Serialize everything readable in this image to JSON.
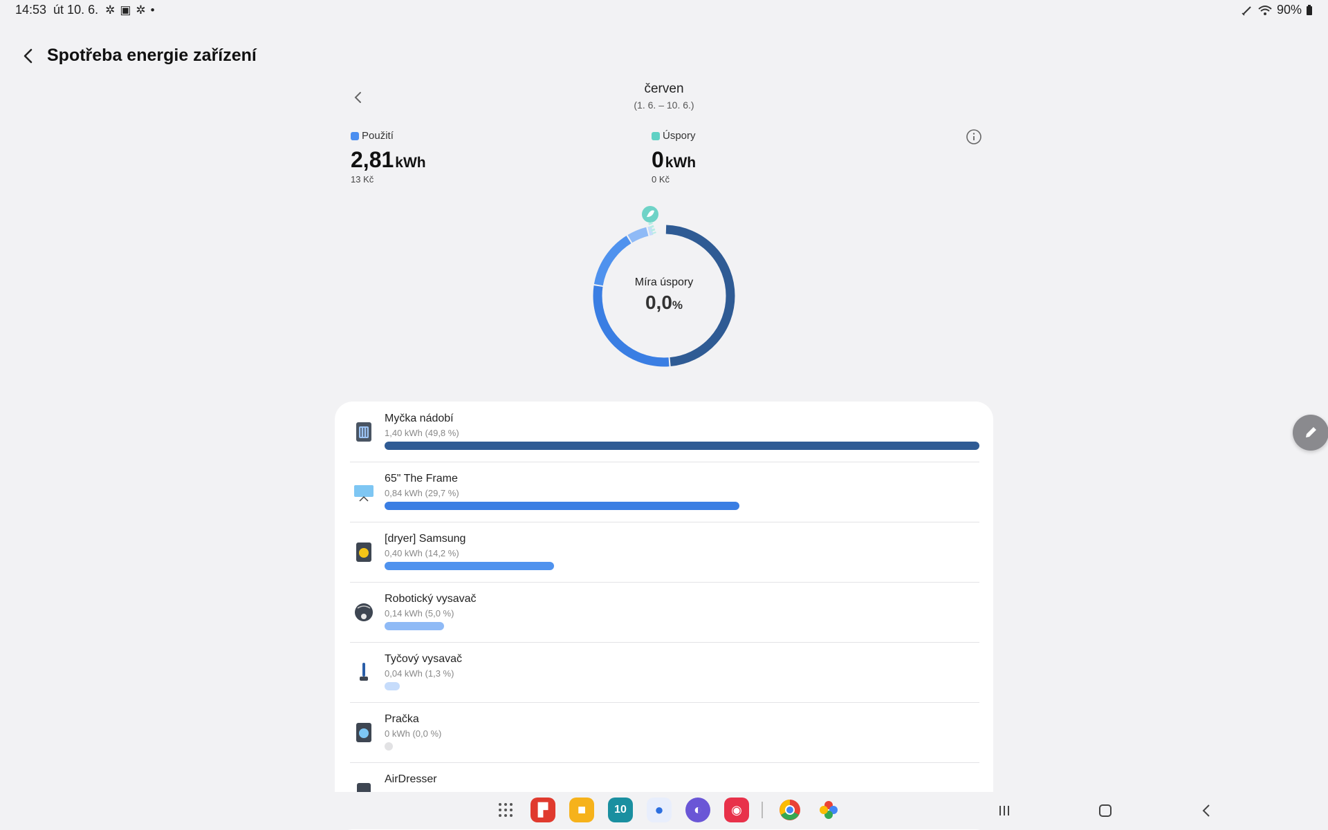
{
  "status": {
    "time": "14:53",
    "date": "út 10. 6.",
    "battery": "90%"
  },
  "header": {
    "title": "Spotřeba energie zařízení"
  },
  "period": {
    "month": "červen",
    "range": "(1. 6. – 10. 6.)"
  },
  "usage": {
    "label": "Použití",
    "value": "2,81",
    "unit": "kWh",
    "cost": "13 Kč",
    "color": "#4a8ef0"
  },
  "savings": {
    "label": "Úspory",
    "value": "0",
    "unit": "kWh",
    "cost": "0 Kč",
    "color": "#5fd1c4"
  },
  "donut": {
    "label": "Míra úspory",
    "value": "0,0",
    "unit": "%"
  },
  "devices": [
    {
      "name": "Myčka nádobí",
      "energy": "1,40 kWh (49,8 %)",
      "share": 49.8,
      "color": "#2f5b94",
      "icon": "dishwasher-icon"
    },
    {
      "name": "65\" The Frame",
      "energy": "0,84 kWh (29,7 %)",
      "share": 29.7,
      "color": "#3a7ee3",
      "icon": "tv-icon"
    },
    {
      "name": "[dryer] Samsung",
      "energy": "0,40 kWh (14,2 %)",
      "share": 14.2,
      "color": "#4f92ee",
      "icon": "dryer-icon"
    },
    {
      "name": "Robotický vysavač",
      "energy": "0,14 kWh (5,0 %)",
      "share": 5.0,
      "color": "#8fbaf6",
      "icon": "robot-vacuum-icon"
    },
    {
      "name": "Tyčový vysavač",
      "energy": "0,04 kWh (1,3 %)",
      "share": 1.3,
      "color": "#c6dcfb",
      "icon": "stick-vacuum-icon"
    },
    {
      "name": "Pračka",
      "energy": "0 kWh (0,0 %)",
      "share": 0.0,
      "color": "#e2e2e4",
      "icon": "washer-icon"
    },
    {
      "name": "AirDresser",
      "energy": "",
      "share": null,
      "color": "#e2e2e4",
      "icon": "airdresser-icon"
    }
  ],
  "dock": {
    "date_badge": "10",
    "apps": [
      "apps-grid-icon",
      "flipboard-icon",
      "files-icon",
      "calendar-icon",
      "messages-icon",
      "internet-icon",
      "screen-recorder-icon",
      "chrome-icon",
      "google-photos-icon"
    ]
  }
}
